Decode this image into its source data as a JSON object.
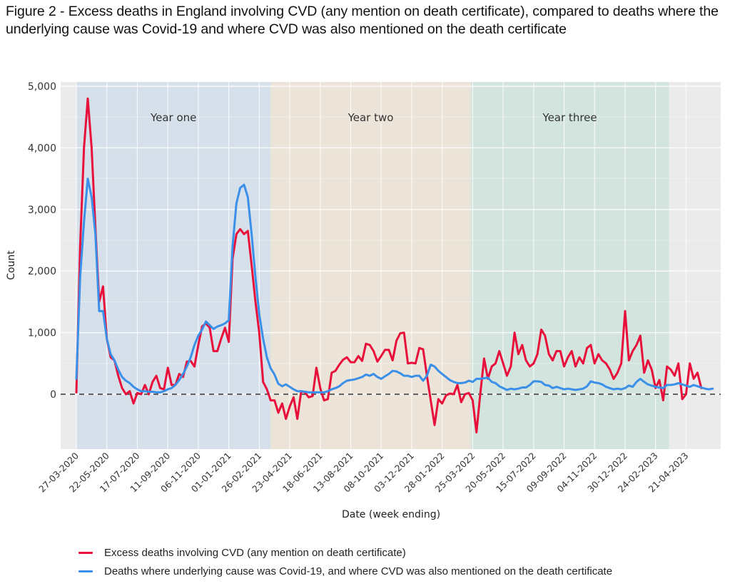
{
  "title": "Figure 2 - Excess deaths in England involving CVD (any mention on death certificate), compared to deaths where the underlying cause was Covid-19 and where CVD was also mentioned on the death certificate",
  "colors": {
    "excess": "#e8103a",
    "covid": "#3a8fe8",
    "panel_bg": "#ebebeb",
    "year_one_bg": "#d6e0ea",
    "year_two_bg": "#ece4d8",
    "year_three_bg": "#d3e4df",
    "grid": "#ffffff",
    "zero_line": "#333333"
  },
  "legend": [
    {
      "key": "excess",
      "label": "Excess deaths involving CVD (any mention on death certificate)"
    },
    {
      "key": "covid",
      "label": "Deaths where underlying cause was Covid-19, and where CVD was also mentioned on the death certificate"
    }
  ],
  "chart_data": {
    "type": "line",
    "title": "Figure 2 - Excess deaths in England involving CVD (any mention on death certificate), compared to deaths where the underlying cause was Covid-19 and where CVD was also mentioned on the death certificate",
    "xlabel": "Date (week ending)",
    "ylabel": "Count",
    "ylim": [
      -900,
      5100
    ],
    "yticks": [
      0,
      1000,
      2000,
      3000,
      4000,
      5000
    ],
    "ytick_labels": [
      "0",
      "1,000",
      "2,000",
      "3,000",
      "4,000",
      "5,000"
    ],
    "x_start": "27-03-2020",
    "x_unit": "week",
    "xticks_week_index": [
      0,
      8,
      16,
      24,
      32,
      40,
      48,
      56,
      64,
      72,
      80,
      88,
      96,
      104,
      112,
      120,
      128,
      136,
      144,
      152,
      160
    ],
    "xtick_labels": [
      "27-03-2020",
      "22-05-2020",
      "17-07-2020",
      "11-09-2020",
      "06-11-2020",
      "01-01-2021",
      "26-02-2021",
      "23-04-2021",
      "18-06-2021",
      "13-08-2021",
      "08-10-2021",
      "03-12-2021",
      "28-01-2022",
      "25-03-2022",
      "20-05-2022",
      "15-07-2022",
      "09-09-2022",
      "04-11-2022",
      "30-12-2022",
      "24-02-2023",
      "21-04-2023"
    ],
    "grid": true,
    "zero_line": "dashed",
    "legend_position": "bottom",
    "periods": [
      {
        "label": "Year one",
        "start_week": 0,
        "end_week": 51
      },
      {
        "label": "Year two",
        "start_week": 51,
        "end_week": 103.5
      },
      {
        "label": "Year three",
        "start_week": 103.5,
        "end_week": 155.5
      }
    ],
    "series": [
      {
        "name": "Excess deaths involving CVD (any mention on death certificate)",
        "key": "excess",
        "values": [
          30,
          2400,
          4000,
          4800,
          4000,
          2700,
          1500,
          1750,
          900,
          600,
          550,
          300,
          100,
          0,
          50,
          -150,
          20,
          0,
          150,
          0,
          200,
          300,
          100,
          80,
          430,
          150,
          150,
          330,
          280,
          530,
          540,
          450,
          800,
          1100,
          1150,
          1080,
          700,
          700,
          900,
          1080,
          850,
          2200,
          2600,
          2680,
          2600,
          2650,
          2100,
          1500,
          1000,
          200,
          80,
          -100,
          -100,
          -300,
          -150,
          -400,
          -200,
          -50,
          -400,
          50,
          30,
          -50,
          -30,
          430,
          100,
          -100,
          -80,
          350,
          380,
          480,
          560,
          600,
          520,
          520,
          620,
          540,
          820,
          800,
          700,
          530,
          620,
          720,
          720,
          550,
          870,
          990,
          1000,
          500,
          510,
          500,
          750,
          730,
          300,
          -100,
          -500,
          -80,
          -150,
          -20,
          10,
          0,
          150,
          -130,
          0,
          20,
          -100,
          -620,
          0,
          580,
          250,
          450,
          500,
          700,
          500,
          300,
          450,
          1000,
          650,
          800,
          550,
          450,
          500,
          650,
          1050,
          950,
          650,
          550,
          700,
          700,
          450,
          600,
          700,
          450,
          600,
          500,
          750,
          800,
          500,
          650,
          550,
          500,
          400,
          250,
          350,
          500,
          1350,
          550,
          700,
          800,
          950,
          350,
          550,
          400,
          100,
          230,
          -100,
          450,
          400,
          300,
          500,
          -80,
          0,
          500,
          250,
          350,
          100
        ]
      },
      {
        "name": "Deaths where underlying cause was Covid-19, and where CVD was also mentioned on the death certificate",
        "key": "covid",
        "values": [
          250,
          1900,
          2800,
          3500,
          3200,
          2600,
          1350,
          1350,
          900,
          650,
          550,
          400,
          280,
          220,
          180,
          120,
          80,
          50,
          50,
          40,
          40,
          30,
          30,
          50,
          80,
          100,
          150,
          230,
          330,
          450,
          600,
          800,
          950,
          1050,
          1180,
          1120,
          1060,
          1100,
          1120,
          1150,
          1200,
          2400,
          3100,
          3350,
          3400,
          3200,
          2600,
          1900,
          1300,
          900,
          600,
          420,
          320,
          170,
          130,
          160,
          120,
          80,
          50,
          50,
          40,
          30,
          30,
          30,
          30,
          30,
          50,
          80,
          100,
          130,
          180,
          220,
          230,
          240,
          260,
          280,
          320,
          300,
          330,
          280,
          250,
          290,
          330,
          380,
          370,
          340,
          300,
          300,
          280,
          300,
          300,
          220,
          300,
          480,
          450,
          380,
          330,
          280,
          230,
          200,
          180,
          180,
          190,
          220,
          200,
          250,
          250,
          260,
          270,
          200,
          180,
          130,
          100,
          70,
          90,
          80,
          90,
          110,
          110,
          150,
          210,
          210,
          200,
          150,
          140,
          100,
          120,
          100,
          80,
          90,
          80,
          70,
          80,
          90,
          130,
          210,
          190,
          180,
          160,
          120,
          100,
          80,
          90,
          80,
          100,
          140,
          120,
          200,
          250,
          200,
          160,
          140,
          120,
          110,
          100,
          150,
          150,
          160,
          180,
          160,
          140,
          120,
          150,
          130,
          110,
          90,
          80,
          90
        ]
      }
    ]
  }
}
